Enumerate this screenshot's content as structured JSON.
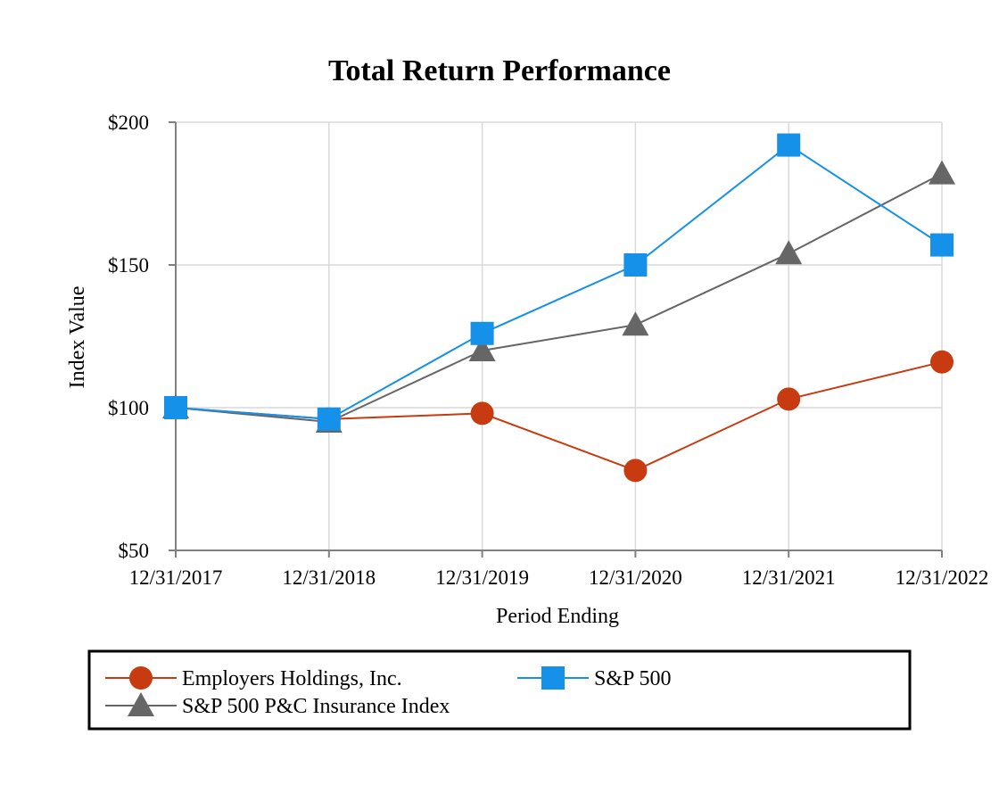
{
  "chart_data": {
    "type": "line",
    "title": "Total Return Performance",
    "xlabel": "Period Ending",
    "ylabel": "Index Value",
    "categories": [
      "12/31/2017",
      "12/31/2018",
      "12/31/2019",
      "12/31/2020",
      "12/31/2021",
      "12/31/2022"
    ],
    "ylim": [
      50,
      200
    ],
    "yticks": [
      50,
      100,
      150,
      200
    ],
    "ytick_labels": [
      "$50",
      "$100",
      "$150",
      "$200"
    ],
    "grid": true,
    "legend_position": "bottom",
    "series": [
      {
        "name": "Employers Holdings, Inc.",
        "marker": "circle",
        "color": "#C83A0F",
        "values": [
          100,
          96,
          98,
          78,
          103,
          116
        ]
      },
      {
        "name": "S&P 500",
        "marker": "square",
        "color": "#1591EA",
        "values": [
          100,
          96,
          126,
          150,
          192,
          157
        ]
      },
      {
        "name": "S&P 500 P&C Insurance Index",
        "marker": "triangle",
        "color": "#666666",
        "values": [
          100,
          95,
          120,
          129,
          154,
          182
        ]
      }
    ]
  }
}
